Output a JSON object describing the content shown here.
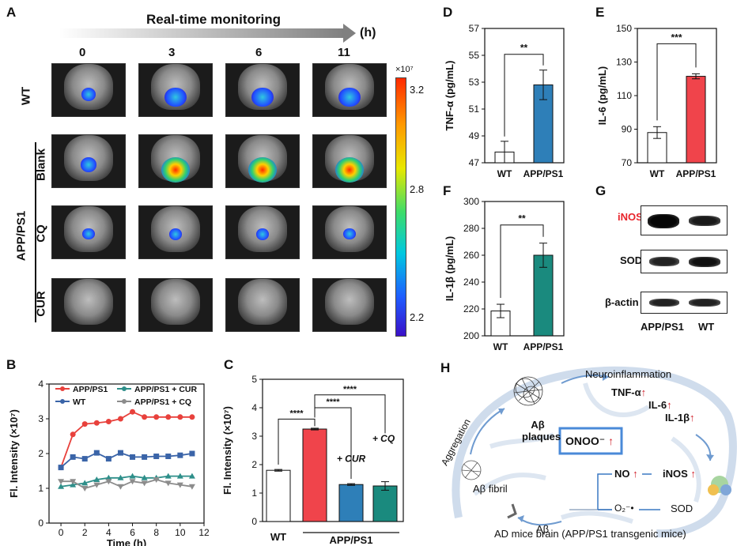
{
  "panels": {
    "A": "A",
    "B": "B",
    "C": "C",
    "D": "D",
    "E": "E",
    "F": "F",
    "G": "G",
    "H": "H"
  },
  "panel_a": {
    "title": "Real-time monitoring",
    "unit": "(h)",
    "timepoints": [
      "0",
      "3",
      "6",
      "11"
    ],
    "row_labels": [
      "WT",
      "Blank",
      "CQ",
      "CUR"
    ],
    "group_label": "APP/PS1",
    "colorbar": {
      "exponent": "×10⁷",
      "ticks": [
        "3.2",
        "2.8",
        "2.2"
      ]
    }
  },
  "chart_data": [
    {
      "id": "B",
      "type": "line",
      "title": "",
      "xlabel": "Time (h)",
      "ylabel": "Fl. Intensity (×10⁷)",
      "xlim": [
        -1,
        12
      ],
      "ylim": [
        0,
        4
      ],
      "xticks": [
        "0",
        "2",
        "4",
        "6",
        "8",
        "10",
        "12"
      ],
      "yticks": [
        "0",
        "1",
        "2",
        "3",
        "4"
      ],
      "x": [
        0,
        1,
        2,
        3,
        4,
        5,
        6,
        7,
        8,
        9,
        10,
        11
      ],
      "series": [
        {
          "name": "APP/PS1",
          "color": "#e8413c",
          "values": [
            1.6,
            2.55,
            2.85,
            2.88,
            2.92,
            3.0,
            3.2,
            3.05,
            3.05,
            3.05,
            3.05,
            3.05
          ]
        },
        {
          "name": "WT",
          "color": "#3a64a8",
          "values": [
            1.6,
            1.9,
            1.85,
            2.02,
            1.85,
            2.02,
            1.9,
            1.9,
            1.92,
            1.92,
            1.95,
            2.0
          ]
        },
        {
          "name": "APP/PS1 + CUR",
          "color": "#2e8f8a",
          "values": [
            1.05,
            1.1,
            1.15,
            1.25,
            1.3,
            1.3,
            1.35,
            1.3,
            1.3,
            1.35,
            1.35,
            1.35
          ]
        },
        {
          "name": "APP/PS1 + CQ",
          "color": "#8c8c8c",
          "values": [
            1.2,
            1.2,
            1.0,
            1.1,
            1.2,
            1.05,
            1.2,
            1.15,
            1.25,
            1.15,
            1.1,
            1.05
          ]
        }
      ]
    },
    {
      "id": "C",
      "type": "bar",
      "title": "",
      "xlabel": "",
      "ylabel": "Fl. Intensity (×10⁷)",
      "ylim": [
        0,
        5
      ],
      "yticks": [
        "0",
        "1",
        "2",
        "3",
        "4",
        "5"
      ],
      "categories": [
        "WT",
        "APP/PS1",
        "+ CUR",
        "+ CQ"
      ],
      "values": [
        1.8,
        3.25,
        1.3,
        1.25
      ],
      "errors": [
        0.03,
        0.03,
        0.03,
        0.15
      ],
      "colors": [
        "#ffffff",
        "#f0444b",
        "#2e7fb8",
        "#1a8a7e"
      ],
      "x_labels": [
        "WT",
        "APP/PS1"
      ],
      "significance": [
        "****",
        "****",
        "****"
      ]
    },
    {
      "id": "D",
      "type": "bar",
      "ylabel": "TNF-α (pg/mL)",
      "ylim": [
        47,
        57
      ],
      "yticks": [
        "47",
        "49",
        "51",
        "53",
        "55",
        "57"
      ],
      "categories": [
        "WT",
        "APP/PS1"
      ],
      "values": [
        47.8,
        52.8
      ],
      "errors": [
        0.8,
        1.1
      ],
      "colors": [
        "#ffffff",
        "#2e7fb8"
      ],
      "significance": "**"
    },
    {
      "id": "E",
      "type": "bar",
      "ylabel": "IL-6 (pg/mL)",
      "ylim": [
        70,
        150
      ],
      "yticks": [
        "70",
        "90",
        "110",
        "130",
        "150"
      ],
      "categories": [
        "WT",
        "APP/PS1"
      ],
      "values": [
        88,
        121.5
      ],
      "errors": [
        3.5,
        1.5
      ],
      "colors": [
        "#ffffff",
        "#f0444b"
      ],
      "significance": "***"
    },
    {
      "id": "F",
      "type": "bar",
      "ylabel": "IL-1β (pg/mL)",
      "ylim": [
        200,
        300
      ],
      "yticks": [
        "200",
        "220",
        "240",
        "260",
        "280",
        "300"
      ],
      "categories": [
        "WT",
        "APP/PS1"
      ],
      "values": [
        218.5,
        260
      ],
      "errors": [
        5,
        9
      ],
      "colors": [
        "#ffffff",
        "#1a8a7e"
      ],
      "significance": "**"
    }
  ],
  "panel_g": {
    "rows": [
      "iNOS",
      "SOD",
      "β-actin"
    ],
    "lanes": [
      "APP/PS1",
      "WT"
    ],
    "highlight_color": "#e8242b"
  },
  "panel_h": {
    "neuroinflammation": "Neuroinflammation",
    "tnf": "TNF-α",
    "il6": "IL-6",
    "il1b": "IL-1β",
    "plaques_line1": "Aβ",
    "plaques_line2": "plaques",
    "aggregation": "Aggregation",
    "fibril": "Aβ fibril",
    "abeta": "Aβ",
    "onoo": "ONOO⁻",
    "no": "NO",
    "inos": "iNOS",
    "o2": "O₂⁻•",
    "sod": "SOD",
    "caption": "AD mice brain (APP/PS1 transgenic mice)",
    "up_arrow": "↑"
  }
}
